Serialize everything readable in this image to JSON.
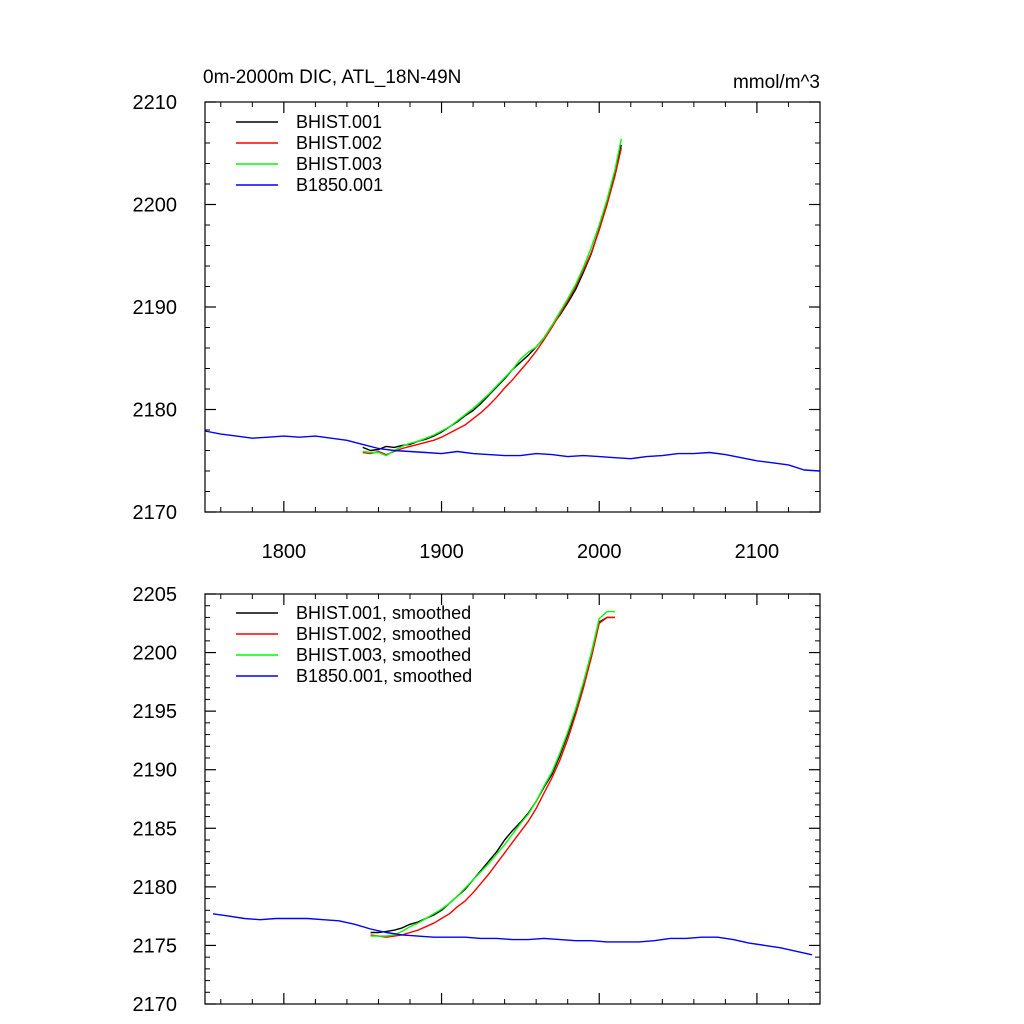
{
  "chart_data": [
    {
      "id": "raw",
      "type": "line",
      "title": "0m-2000m DIC, ATL_18N-49N",
      "units": "mmol/m^3",
      "xlim": [
        1750,
        2140
      ],
      "ylim": [
        2170,
        2210
      ],
      "xticks": [
        1800,
        1900,
        2000,
        2100
      ],
      "yticks": [
        2170,
        2180,
        2190,
        2200,
        2210
      ],
      "legend_position": "top-left",
      "series": [
        {
          "name": "BHIST.001",
          "color": "#000000",
          "x": [
            1850,
            1855,
            1860,
            1865,
            1870,
            1875,
            1880,
            1885,
            1890,
            1895,
            1900,
            1905,
            1910,
            1915,
            1920,
            1925,
            1930,
            1935,
            1940,
            1945,
            1950,
            1955,
            1960,
            1965,
            1970,
            1975,
            1980,
            1985,
            1990,
            1995,
            2000,
            2005,
            2010,
            2014
          ],
          "y": [
            2176.3,
            2176.0,
            2176.1,
            2176.4,
            2176.3,
            2176.5,
            2176.6,
            2176.9,
            2177.1,
            2177.4,
            2177.8,
            2178.3,
            2178.8,
            2179.4,
            2179.9,
            2180.6,
            2181.4,
            2182.2,
            2183.0,
            2183.9,
            2184.6,
            2185.3,
            2186.1,
            2187.0,
            2188.2,
            2189.2,
            2190.4,
            2191.7,
            2193.4,
            2195.2,
            2197.6,
            2200.2,
            2203.2,
            2205.8
          ]
        },
        {
          "name": "BHIST.002",
          "color": "#ff0000",
          "x": [
            1850,
            1855,
            1860,
            1865,
            1870,
            1875,
            1880,
            1885,
            1890,
            1895,
            1900,
            1905,
            1910,
            1915,
            1920,
            1925,
            1930,
            1935,
            1940,
            1945,
            1950,
            1955,
            1960,
            1965,
            1970,
            1975,
            1980,
            1985,
            1990,
            1995,
            2000,
            2005,
            2010,
            2014
          ],
          "y": [
            2175.8,
            2175.7,
            2175.9,
            2175.6,
            2175.9,
            2176.2,
            2176.4,
            2176.6,
            2176.8,
            2177.0,
            2177.3,
            2177.7,
            2178.1,
            2178.5,
            2179.1,
            2179.7,
            2180.4,
            2181.2,
            2182.1,
            2182.9,
            2183.8,
            2184.7,
            2185.7,
            2186.8,
            2188.0,
            2189.3,
            2190.6,
            2192.0,
            2193.6,
            2195.3,
            2197.5,
            2200.0,
            2202.8,
            2205.5
          ]
        },
        {
          "name": "BHIST.003",
          "color": "#00ff00",
          "x": [
            1850,
            1855,
            1860,
            1865,
            1870,
            1875,
            1880,
            1885,
            1890,
            1895,
            1900,
            1905,
            1910,
            1915,
            1920,
            1925,
            1930,
            1935,
            1940,
            1945,
            1950,
            1955,
            1960,
            1965,
            1970,
            1975,
            1980,
            1985,
            1990,
            1995,
            2000,
            2005,
            2010,
            2014
          ],
          "y": [
            2175.9,
            2175.8,
            2175.8,
            2175.5,
            2176.0,
            2176.4,
            2176.7,
            2176.9,
            2177.2,
            2177.5,
            2177.9,
            2178.3,
            2178.9,
            2179.5,
            2180.1,
            2180.8,
            2181.5,
            2182.3,
            2183.1,
            2183.9,
            2184.9,
            2185.6,
            2186.1,
            2187.0,
            2188.2,
            2189.5,
            2190.8,
            2192.2,
            2193.9,
            2195.8,
            2198.0,
            2200.5,
            2203.4,
            2206.4
          ]
        },
        {
          "name": "B1850.001",
          "color": "#0000ff",
          "x": [
            1750,
            1760,
            1770,
            1780,
            1790,
            1800,
            1810,
            1820,
            1830,
            1840,
            1850,
            1860,
            1870,
            1880,
            1890,
            1900,
            1910,
            1920,
            1930,
            1940,
            1950,
            1960,
            1970,
            1980,
            1990,
            2000,
            2010,
            2020,
            2030,
            2040,
            2050,
            2060,
            2070,
            2080,
            2090,
            2100,
            2110,
            2120,
            2130,
            2140
          ],
          "y": [
            2177.9,
            2177.6,
            2177.4,
            2177.2,
            2177.3,
            2177.4,
            2177.3,
            2177.4,
            2177.2,
            2177.0,
            2176.6,
            2176.2,
            2176.0,
            2175.9,
            2175.8,
            2175.7,
            2175.9,
            2175.7,
            2175.6,
            2175.5,
            2175.5,
            2175.7,
            2175.6,
            2175.4,
            2175.5,
            2175.4,
            2175.3,
            2175.2,
            2175.4,
            2175.5,
            2175.7,
            2175.7,
            2175.8,
            2175.6,
            2175.3,
            2175.0,
            2174.8,
            2174.6,
            2174.1,
            2174.0
          ]
        }
      ]
    },
    {
      "id": "smoothed",
      "type": "line",
      "title": "",
      "units": "",
      "xlim": [
        1750,
        2140
      ],
      "ylim": [
        2170,
        2205
      ],
      "xticks": [
        1800,
        1900,
        2000,
        2100
      ],
      "yticks": [
        2170,
        2175,
        2180,
        2185,
        2190,
        2195,
        2200,
        2205
      ],
      "legend_position": "top-left",
      "series": [
        {
          "name": "BHIST.001, smoothed",
          "color": "#000000",
          "x": [
            1855,
            1860,
            1865,
            1870,
            1875,
            1880,
            1885,
            1890,
            1895,
            1900,
            1905,
            1910,
            1915,
            1920,
            1925,
            1930,
            1935,
            1940,
            1945,
            1950,
            1955,
            1960,
            1965,
            1970,
            1975,
            1980,
            1985,
            1990,
            1995,
            2000,
            2005,
            2010
          ],
          "y": [
            2176.1,
            2176.1,
            2176.2,
            2176.3,
            2176.5,
            2176.8,
            2177.0,
            2177.3,
            2177.6,
            2178.0,
            2178.6,
            2179.2,
            2179.8,
            2180.6,
            2181.4,
            2182.2,
            2183.0,
            2184.0,
            2184.8,
            2185.5,
            2186.3,
            2187.3,
            2188.5,
            2189.6,
            2191.2,
            2193.0,
            2195.0,
            2197.2,
            2199.6,
            2202.6,
            2203.0,
            2203.0
          ]
        },
        {
          "name": "BHIST.002, smoothed",
          "color": "#ff0000",
          "x": [
            1855,
            1860,
            1865,
            1870,
            1875,
            1880,
            1885,
            1890,
            1895,
            1900,
            1905,
            1910,
            1915,
            1920,
            1925,
            1930,
            1935,
            1940,
            1945,
            1950,
            1955,
            1960,
            1965,
            1970,
            1975,
            1980,
            1985,
            1990,
            1995,
            2000,
            2005,
            2010
          ],
          "y": [
            2175.9,
            2175.8,
            2175.7,
            2175.8,
            2175.9,
            2176.1,
            2176.3,
            2176.6,
            2176.9,
            2177.3,
            2177.7,
            2178.3,
            2178.8,
            2179.5,
            2180.3,
            2181.1,
            2182.0,
            2182.9,
            2183.8,
            2184.7,
            2185.6,
            2186.7,
            2188.0,
            2189.3,
            2190.8,
            2192.6,
            2194.7,
            2197.0,
            2199.6,
            2202.5,
            2203.0,
            2203.0
          ]
        },
        {
          "name": "BHIST.003, smoothed",
          "color": "#00ff00",
          "x": [
            1855,
            1860,
            1865,
            1870,
            1875,
            1880,
            1885,
            1890,
            1895,
            1900,
            1905,
            1910,
            1915,
            1920,
            1925,
            1930,
            1935,
            1940,
            1945,
            1950,
            1955,
            1960,
            1965,
            1970,
            1975,
            1980,
            1985,
            1990,
            1995,
            2000,
            2005,
            2010
          ],
          "y": [
            2175.8,
            2175.8,
            2175.8,
            2175.9,
            2176.2,
            2176.6,
            2176.9,
            2177.3,
            2177.7,
            2178.1,
            2178.6,
            2179.2,
            2179.9,
            2180.6,
            2181.3,
            2182.0,
            2182.8,
            2183.6,
            2184.5,
            2185.4,
            2186.2,
            2187.3,
            2188.6,
            2189.8,
            2191.4,
            2193.2,
            2195.2,
            2197.5,
            2200.0,
            2202.9,
            2203.5,
            2203.5
          ]
        },
        {
          "name": "B1850.001, smoothed",
          "color": "#0000ff",
          "x": [
            1755,
            1765,
            1775,
            1785,
            1795,
            1805,
            1815,
            1825,
            1835,
            1845,
            1855,
            1865,
            1875,
            1885,
            1895,
            1905,
            1915,
            1925,
            1935,
            1945,
            1955,
            1965,
            1975,
            1985,
            1995,
            2005,
            2015,
            2025,
            2035,
            2045,
            2055,
            2065,
            2075,
            2085,
            2095,
            2105,
            2115,
            2125,
            2135
          ],
          "y": [
            2177.7,
            2177.5,
            2177.3,
            2177.2,
            2177.3,
            2177.3,
            2177.3,
            2177.2,
            2177.1,
            2176.8,
            2176.4,
            2176.1,
            2175.9,
            2175.8,
            2175.7,
            2175.7,
            2175.7,
            2175.6,
            2175.6,
            2175.5,
            2175.5,
            2175.6,
            2175.5,
            2175.4,
            2175.4,
            2175.3,
            2175.3,
            2175.3,
            2175.4,
            2175.6,
            2175.6,
            2175.7,
            2175.7,
            2175.5,
            2175.2,
            2175.0,
            2174.8,
            2174.5,
            2174.2
          ]
        }
      ]
    }
  ]
}
